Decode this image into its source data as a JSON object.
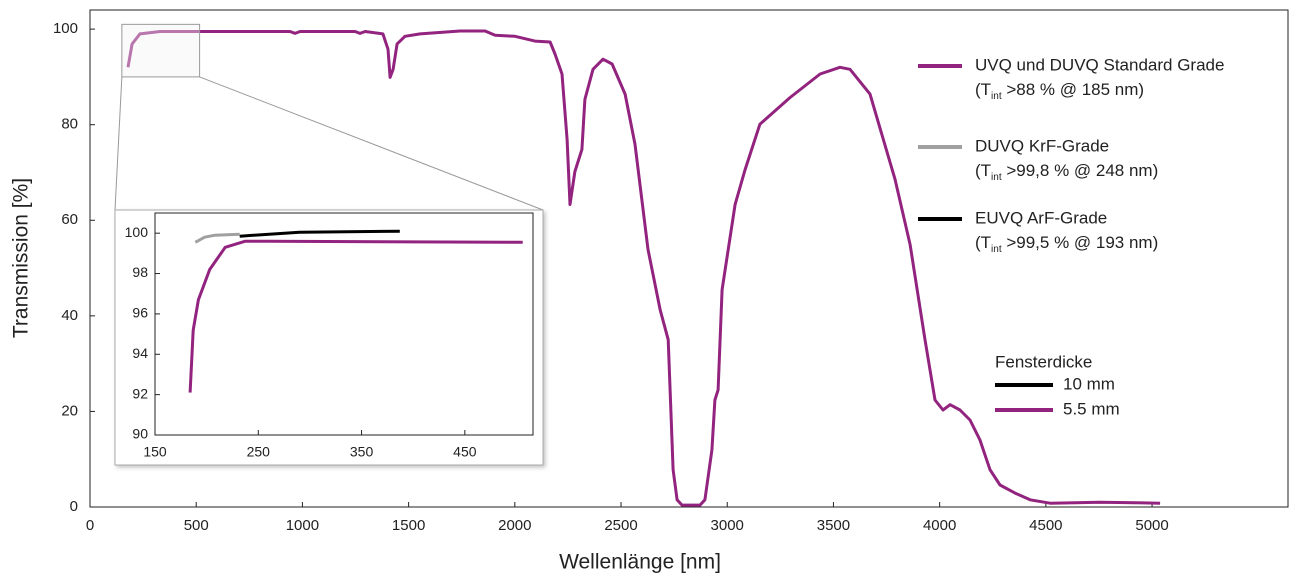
{
  "chart_data": [
    {
      "type": "line",
      "x_label": "Wellenlänge [nm]",
      "y_label": "Transmission [%]",
      "xlim": [
        0,
        5640
      ],
      "ylim": [
        0,
        104
      ],
      "xticks": [
        0,
        500,
        1000,
        1500,
        2000,
        2500,
        3000,
        3500,
        4000,
        4500,
        5000
      ],
      "yticks": [
        0,
        20,
        40,
        60,
        80,
        100
      ],
      "series": [
        {
          "name": "UVQ und DUVQ Standard Grade",
          "color": "#92237f",
          "x": [
            179,
            198,
            235,
            330,
            942,
            965,
            989,
            1248,
            1271,
            1295,
            1379,
            1403,
            1413,
            1427,
            1446,
            1483,
            1554,
            1742,
            1860,
            1907,
            2001,
            2095,
            2166,
            2189,
            2222,
            2246,
            2260,
            2283,
            2316,
            2330,
            2368,
            2415,
            2458,
            2519,
            2566,
            2627,
            2684,
            2722,
            2731,
            2745,
            2764,
            2787,
            2872,
            2895,
            2928,
            2942,
            2957,
            2976,
            3037,
            3084,
            3154,
            3296,
            3437,
            3531,
            3578,
            3672,
            3790,
            3861,
            3931,
            3978,
            4016,
            4049,
            4096,
            4143,
            4190,
            4237,
            4284,
            4355,
            4426,
            4520,
            4755,
            5038
          ],
          "values": [
            92.0,
            96.9,
            99.0,
            99.5,
            99.5,
            99.1,
            99.5,
            99.5,
            99.1,
            99.5,
            99.0,
            95.8,
            89.9,
            91.6,
            96.9,
            98.5,
            99.0,
            99.6,
            99.6,
            98.7,
            98.5,
            97.5,
            97.3,
            94.8,
            90.6,
            76.9,
            63.3,
            70.2,
            74.8,
            85.3,
            91.6,
            93.7,
            92.7,
            86.4,
            75.9,
            53.9,
            41.3,
            35.0,
            24.5,
            7.8,
            1.5,
            0.4,
            0.4,
            1.5,
            11.9,
            22.4,
            24.5,
            45.5,
            63.3,
            70.6,
            80.1,
            85.7,
            90.6,
            92.0,
            91.6,
            86.4,
            68.6,
            54.9,
            35.0,
            22.4,
            20.3,
            21.4,
            20.3,
            18.2,
            14.0,
            7.8,
            4.6,
            2.9,
            1.5,
            0.8,
            1.0,
            0.8
          ]
        }
      ]
    },
    {
      "type": "line",
      "xlim": [
        150,
        516
      ],
      "ylim": [
        90,
        101
      ],
      "xticks": [
        150,
        250,
        350,
        450
      ],
      "yticks": [
        90,
        92,
        94,
        96,
        98,
        100
      ],
      "series": [
        {
          "name": "UVQ und DUVQ Standard Grade",
          "color": "#92237f",
          "x": [
            184,
            187,
            192,
            203,
            218,
            237,
            261,
            506
          ],
          "values": [
            92.1,
            95.2,
            96.7,
            98.2,
            99.3,
            99.6,
            99.6,
            99.55
          ]
        },
        {
          "name": "DUVQ KrF-Grade",
          "color": "#a0a0a0",
          "x": [
            189,
            198,
            208,
            232
          ],
          "values": [
            99.55,
            99.8,
            99.9,
            99.95
          ]
        },
        {
          "name": "EUVQ ArF-Grade",
          "color": "#000000",
          "x": [
            232,
            290,
            387
          ],
          "values": [
            99.85,
            100.05,
            100.1
          ]
        }
      ]
    }
  ],
  "grade_notes": [
    {
      "pre": "(T",
      "sub": "int",
      "post": " >88 % @ 185 nm)"
    },
    {
      "pre": "(T",
      "sub": "int",
      "post": " >99,8 % @ 248 nm)"
    },
    {
      "pre": "(T",
      "sub": "int",
      "post": " >99,5 % @ 193 nm)"
    }
  ],
  "thickness_legend": {
    "title": "Fensterdicke",
    "items": [
      {
        "name": "10 mm",
        "color": "#000000"
      },
      {
        "name": "5.5 mm",
        "color": "#92237f"
      }
    ]
  }
}
